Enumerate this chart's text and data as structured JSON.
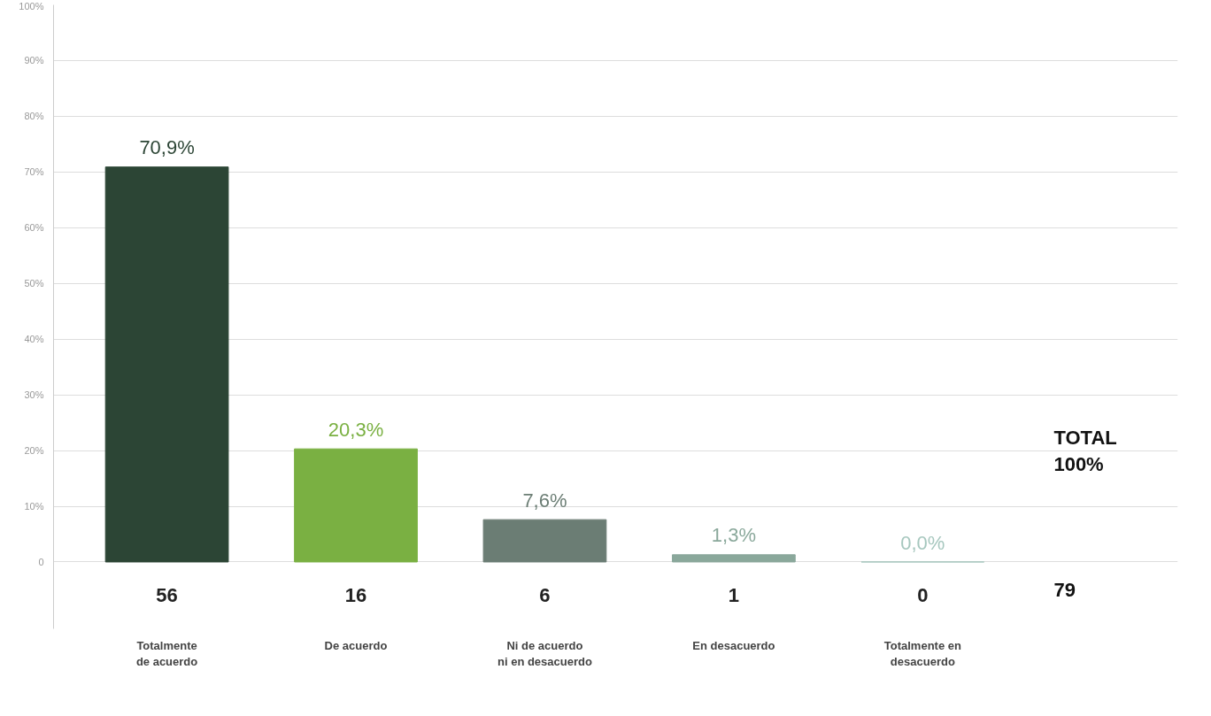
{
  "chart_data": {
    "type": "bar",
    "categories": [
      "Totalmente\nde acuerdo",
      "De acuerdo",
      "Ni de acuerdo\nni en desacuerdo",
      "En desacuerdo",
      "Totalmente en\ndesacuerdo"
    ],
    "values": [
      70.9,
      20.3,
      7.6,
      1.3,
      0.0
    ],
    "colors": [
      "#2c4535",
      "#7ab042",
      "#6b7d74",
      "#8aa89b",
      "#a6c7be"
    ],
    "value_labels": [
      "70,9%",
      "20,3%",
      "7,6%",
      "1,3%",
      "0,0%"
    ],
    "ylim": [
      -12,
      100
    ],
    "yticks": [
      {
        "value": 0,
        "label": "0"
      },
      {
        "value": 10,
        "label": "10%"
      },
      {
        "value": 20,
        "label": "20%"
      },
      {
        "value": 30,
        "label": "30%"
      },
      {
        "value": 40,
        "label": "40%"
      },
      {
        "value": 50,
        "label": "50%"
      },
      {
        "value": 60,
        "label": "60%"
      },
      {
        "value": 70,
        "label": "70%"
      },
      {
        "value": 80,
        "label": "80%"
      },
      {
        "value": 90,
        "label": "90%"
      },
      {
        "value": 100,
        "label": "100%"
      }
    ],
    "grid": "y",
    "annotations": [
      "56",
      "16",
      "6",
      "1",
      "0",
      "TOTAL\n100%",
      "79"
    ]
  }
}
